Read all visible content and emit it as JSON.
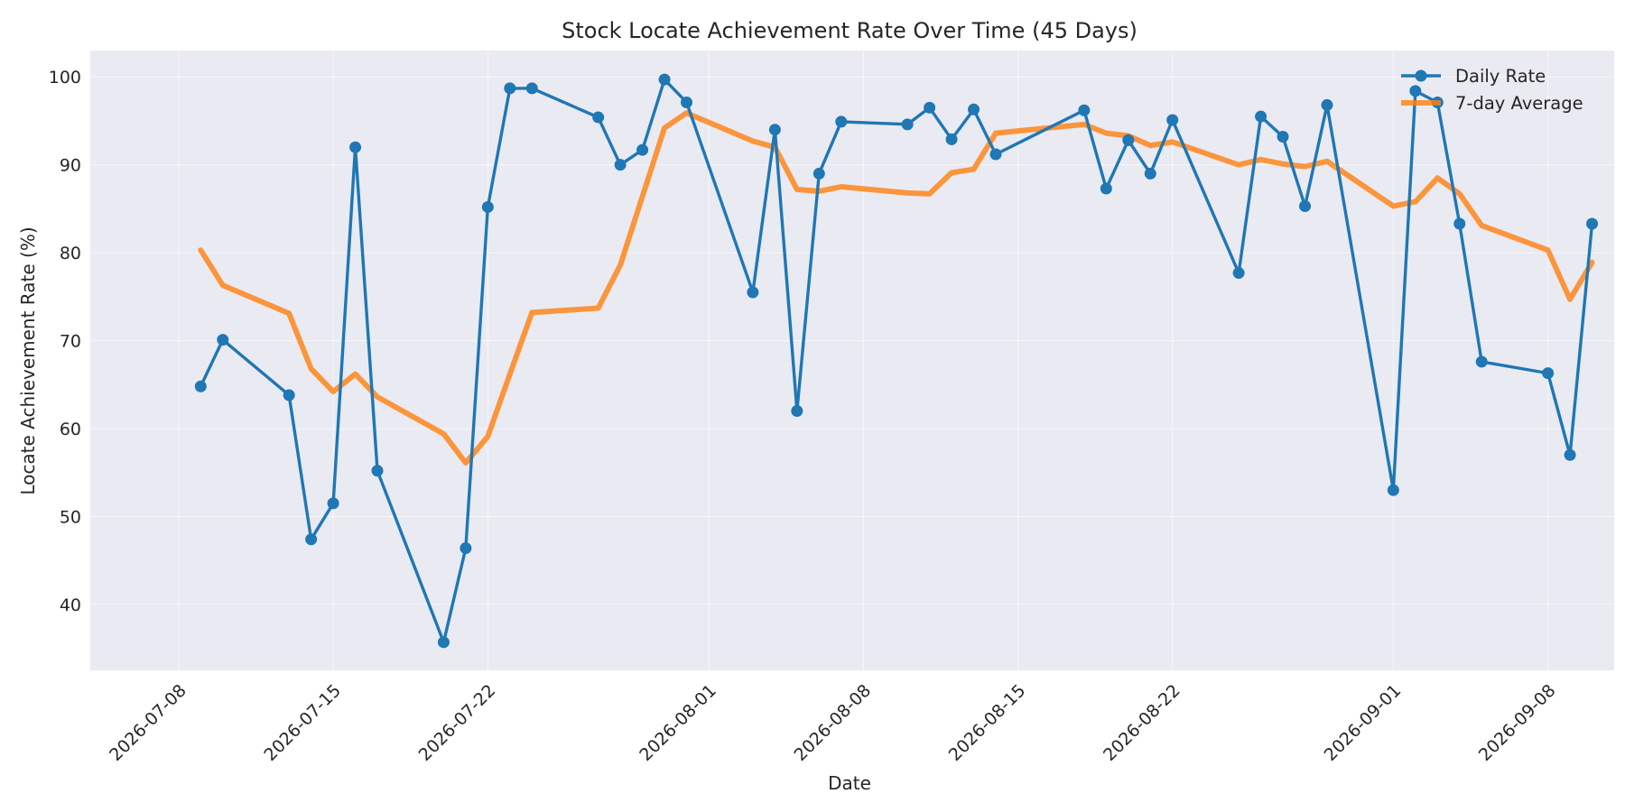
{
  "chart_data": {
    "type": "line",
    "title": "Stock Locate Achievement Rate Over Time (45 Days)",
    "xlabel": "Date",
    "ylabel": "Locate Achievement Rate (%)",
    "xlim": [
      "2026-07-04",
      "2026-09-11"
    ],
    "ylim": [
      32.5,
      103
    ],
    "x_ticks": [
      "2026-07-08",
      "2026-07-15",
      "2026-07-22",
      "2026-08-01",
      "2026-08-08",
      "2026-08-15",
      "2026-08-22",
      "2026-09-01",
      "2026-09-08"
    ],
    "y_ticks": [
      40,
      50,
      60,
      70,
      80,
      90,
      100
    ],
    "grid": true,
    "legend_position": "top-right",
    "background_color": "#eaeaf2",
    "x": [
      "2026-07-09",
      "2026-07-10",
      "2026-07-13",
      "2026-07-14",
      "2026-07-15",
      "2026-07-16",
      "2026-07-17",
      "2026-07-20",
      "2026-07-21",
      "2026-07-22",
      "2026-07-23",
      "2026-07-24",
      "2026-07-27",
      "2026-07-28",
      "2026-07-29",
      "2026-07-30",
      "2026-07-31",
      "2026-08-03",
      "2026-08-04",
      "2026-08-05",
      "2026-08-06",
      "2026-08-07",
      "2026-08-10",
      "2026-08-11",
      "2026-08-12",
      "2026-08-13",
      "2026-08-14",
      "2026-08-18",
      "2026-08-19",
      "2026-08-20",
      "2026-08-21",
      "2026-08-22",
      "2026-08-25",
      "2026-08-26",
      "2026-08-27",
      "2026-08-28",
      "2026-08-29",
      "2026-09-01",
      "2026-09-02",
      "2026-09-03",
      "2026-09-04",
      "2026-09-05",
      "2026-09-08",
      "2026-09-09",
      "2026-09-10"
    ],
    "series": [
      {
        "name": "Daily Rate",
        "color": "#1f77b4",
        "marker": "circle",
        "values": [
          64.8,
          70.1,
          63.8,
          47.4,
          51.5,
          92.0,
          55.2,
          35.7,
          46.4,
          85.2,
          98.7,
          98.7,
          95.4,
          90.0,
          91.7,
          99.7,
          97.1,
          75.5,
          94.0,
          62.0,
          89.0,
          94.9,
          94.6,
          96.5,
          92.9,
          96.3,
          91.2,
          96.2,
          87.3,
          92.8,
          89.0,
          95.1,
          77.7,
          95.5,
          93.2,
          85.3,
          96.8,
          53.0,
          98.4,
          97.1,
          83.3,
          67.6,
          66.3,
          57.0,
          83.3
        ]
      },
      {
        "name": "7-day Average",
        "color": "#ff7f0e",
        "values": [
          80.3,
          76.3,
          73.1,
          66.8,
          64.2,
          66.2,
          63.6,
          59.4,
          56.1,
          59.1,
          66.2,
          73.2,
          73.7,
          78.6,
          86.4,
          94.2,
          95.9,
          92.7,
          92.0,
          87.2,
          87.0,
          87.5,
          86.8,
          86.7,
          89.1,
          89.5,
          93.6,
          94.6,
          93.6,
          93.3,
          92.2,
          92.6,
          90.0,
          90.6,
          90.1,
          89.8,
          90.4,
          85.3,
          85.8,
          88.5,
          86.7,
          83.1,
          80.3,
          74.7,
          78.9
        ]
      }
    ]
  }
}
